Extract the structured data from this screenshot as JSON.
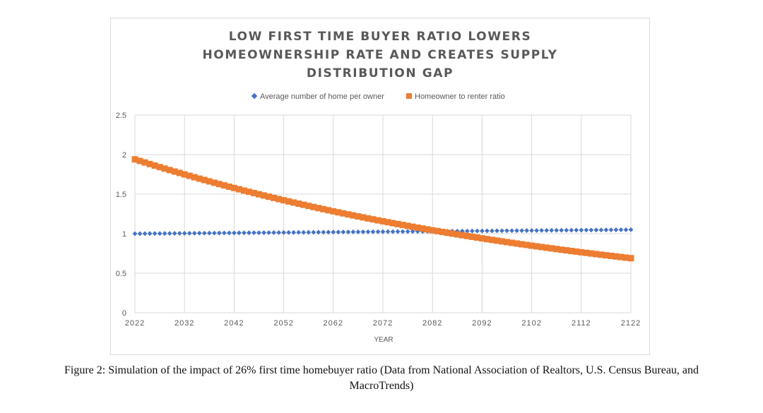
{
  "chart_data": {
    "type": "scatter",
    "title_lines": [
      "LOW FIRST TIME BUYER RATIO LOWERS",
      "HOMEOWNERSHIP RATE AND CREATES SUPPLY",
      "DISTRIBUTION GAP"
    ],
    "xlabel": "YEAR",
    "ylabel": "",
    "xlim": [
      2022,
      2122
    ],
    "ylim": [
      0,
      2.5
    ],
    "x_ticks": [
      "2022",
      "2032",
      "2042",
      "2052",
      "2062",
      "2072",
      "2082",
      "2092",
      "2102",
      "2112",
      "2122"
    ],
    "y_ticks": [
      "0",
      "0.5",
      "1",
      "1.5",
      "2",
      "2.5"
    ],
    "grid": true,
    "legend_position": "top-center",
    "series": [
      {
        "name": "Average number of home per owner",
        "marker": "diamond",
        "color": "#4472C4",
        "x_start": 2022,
        "x_end": 2122,
        "x_step": 1,
        "y_start": 1.0,
        "y_end": 1.05
      },
      {
        "name": "Homeowner to renter ratio",
        "marker": "square",
        "color": "#ED7D31",
        "x_start": 2022,
        "x_end": 2122,
        "x_step": 1,
        "y_start": 1.94,
        "y_end": 0.69
      }
    ]
  },
  "caption": {
    "line1": "Figure 2: Simulation of the impact of 26% first time homebuyer ratio (Data from National Association of Realtors, U.S. Census Bureau, and",
    "line2": "MacroTrends)"
  }
}
